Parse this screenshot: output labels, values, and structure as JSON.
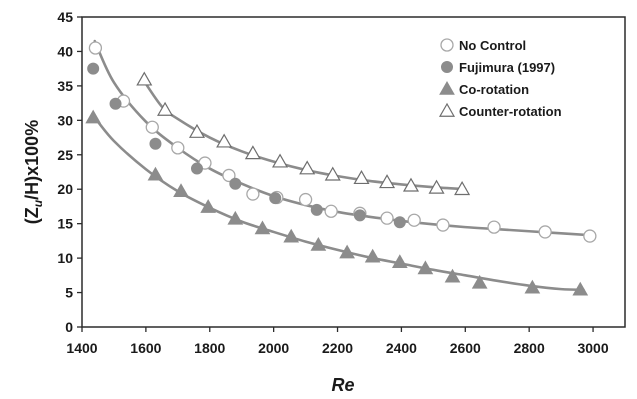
{
  "chart_data": {
    "type": "scatter",
    "xlabel": "Re",
    "ylabel_parts": [
      "(Z",
      "u",
      "/H)x100%"
    ],
    "xlim": [
      1400,
      3100
    ],
    "ylim": [
      0,
      45
    ],
    "xticks": [
      1400,
      1600,
      1800,
      2000,
      2200,
      2400,
      2600,
      2800,
      3000
    ],
    "yticks": [
      0,
      5,
      10,
      15,
      20,
      25,
      30,
      35,
      40,
      45
    ],
    "grid": false,
    "legend_position": "top-right",
    "series": [
      {
        "name": "No Control",
        "marker": "circle-open",
        "color": "#8c8c8c",
        "points": [
          [
            1442,
            40.5
          ],
          [
            1530,
            32.8
          ],
          [
            1620,
            29.0
          ],
          [
            1700,
            26.0
          ],
          [
            1785,
            23.8
          ],
          [
            1860,
            22.0
          ],
          [
            1935,
            19.3
          ],
          [
            2010,
            18.8
          ],
          [
            2100,
            18.5
          ],
          [
            2180,
            16.8
          ],
          [
            2270,
            16.5
          ],
          [
            2355,
            15.8
          ],
          [
            2440,
            15.5
          ],
          [
            2530,
            14.8
          ],
          [
            2690,
            14.5
          ],
          [
            2850,
            13.8
          ],
          [
            2990,
            13.2
          ]
        ],
        "fit": [
          [
            1440,
            41.5
          ],
          [
            1500,
            35.5
          ],
          [
            1600,
            29.8
          ],
          [
            1700,
            26.0
          ],
          [
            1800,
            23.0
          ],
          [
            1900,
            20.8
          ],
          [
            2000,
            19.0
          ],
          [
            2100,
            17.7
          ],
          [
            2200,
            16.7
          ],
          [
            2300,
            16.0
          ],
          [
            2400,
            15.4
          ],
          [
            2500,
            14.9
          ],
          [
            2600,
            14.5
          ],
          [
            2700,
            14.2
          ],
          [
            2800,
            13.9
          ],
          [
            2900,
            13.6
          ],
          [
            3000,
            13.3
          ]
        ]
      },
      {
        "name": "Fujimura (1997)",
        "marker": "circle-filled",
        "color": "#8c8c8c",
        "points": [
          [
            1435,
            37.5
          ],
          [
            1505,
            32.4
          ],
          [
            1630,
            26.6
          ],
          [
            1760,
            23.0
          ],
          [
            1880,
            20.8
          ],
          [
            2005,
            18.7
          ],
          [
            2135,
            17.0
          ],
          [
            2270,
            16.2
          ],
          [
            2395,
            15.2
          ]
        ]
      },
      {
        "name": "Co-rotation",
        "marker": "triangle-filled",
        "color": "#8c8c8c",
        "points": [
          [
            1435,
            30.4
          ],
          [
            1630,
            22.1
          ],
          [
            1710,
            19.7
          ],
          [
            1795,
            17.4
          ],
          [
            1880,
            15.7
          ],
          [
            1965,
            14.3
          ],
          [
            2055,
            13.1
          ],
          [
            2140,
            11.9
          ],
          [
            2230,
            10.8
          ],
          [
            2310,
            10.2
          ],
          [
            2395,
            9.4
          ],
          [
            2475,
            8.5
          ],
          [
            2560,
            7.3
          ],
          [
            2645,
            6.4
          ],
          [
            2810,
            5.7
          ],
          [
            2960,
            5.4
          ]
        ],
        "fit": [
          [
            1440,
            30.4
          ],
          [
            1500,
            27.0
          ],
          [
            1600,
            22.9
          ],
          [
            1700,
            19.7
          ],
          [
            1800,
            17.3
          ],
          [
            1900,
            15.3
          ],
          [
            2000,
            13.8
          ],
          [
            2100,
            12.4
          ],
          [
            2200,
            11.2
          ],
          [
            2300,
            10.1
          ],
          [
            2400,
            9.2
          ],
          [
            2500,
            8.3
          ],
          [
            2600,
            7.5
          ],
          [
            2700,
            6.7
          ],
          [
            2800,
            6.0
          ],
          [
            2900,
            5.5
          ],
          [
            2970,
            5.4
          ]
        ]
      },
      {
        "name": "Counter-rotation",
        "marker": "triangle-open",
        "color": "#8c8c8c",
        "points": [
          [
            1595,
            35.9
          ],
          [
            1660,
            31.5
          ],
          [
            1760,
            28.3
          ],
          [
            1845,
            26.9
          ],
          [
            1935,
            25.2
          ],
          [
            2020,
            24.0
          ],
          [
            2105,
            23.0
          ],
          [
            2185,
            22.1
          ],
          [
            2275,
            21.6
          ],
          [
            2355,
            21.0
          ],
          [
            2430,
            20.5
          ],
          [
            2510,
            20.2
          ],
          [
            2590,
            20.0
          ]
        ],
        "fit": [
          [
            1590,
            36.0
          ],
          [
            1650,
            32.0
          ],
          [
            1700,
            30.2
          ],
          [
            1800,
            27.5
          ],
          [
            1900,
            25.5
          ],
          [
            2000,
            24.0
          ],
          [
            2100,
            22.8
          ],
          [
            2200,
            21.9
          ],
          [
            2300,
            21.2
          ],
          [
            2400,
            20.7
          ],
          [
            2500,
            20.3
          ],
          [
            2600,
            20.0
          ]
        ]
      }
    ]
  }
}
